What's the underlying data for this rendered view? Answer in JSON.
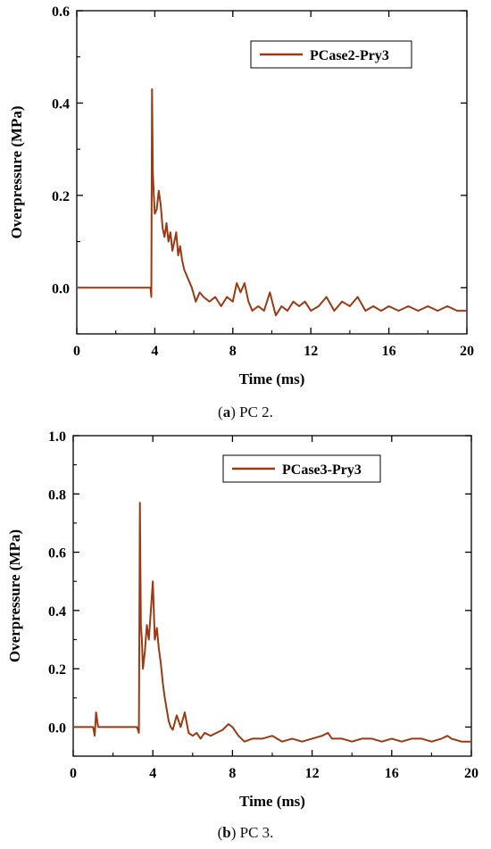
{
  "chart_data": [
    {
      "type": "line",
      "caption_label": "a",
      "caption_text": "PC 2.",
      "xlabel": "Time (ms)",
      "ylabel": "Overpressure (MPa)",
      "xlim": [
        0,
        20
      ],
      "ylim": [
        -0.1,
        0.6
      ],
      "xticks": [
        "0",
        "4",
        "8",
        "12",
        "16",
        "20"
      ],
      "yticks": [
        "0.0",
        "0.2",
        "0.4",
        "0.6"
      ],
      "legend_position": "top-right",
      "series": [
        {
          "name": "PCase2-Pry3",
          "color": "#9b3a12",
          "x": [
            0.0,
            1.0,
            2.0,
            3.0,
            3.7,
            3.78,
            3.82,
            3.86,
            3.9,
            3.95,
            4.0,
            4.1,
            4.2,
            4.3,
            4.4,
            4.5,
            4.6,
            4.7,
            4.8,
            4.9,
            5.0,
            5.1,
            5.2,
            5.3,
            5.4,
            5.5,
            5.7,
            5.9,
            6.1,
            6.3,
            6.5,
            6.8,
            7.1,
            7.4,
            7.7,
            8.0,
            8.2,
            8.4,
            8.6,
            8.8,
            9.0,
            9.3,
            9.6,
            9.9,
            10.2,
            10.5,
            10.8,
            11.1,
            11.4,
            11.7,
            12.0,
            12.4,
            12.8,
            13.2,
            13.6,
            14.0,
            14.4,
            14.8,
            15.2,
            15.6,
            16.0,
            16.5,
            17.0,
            17.5,
            18.0,
            18.5,
            19.0,
            19.5,
            20.0
          ],
          "y": [
            0.0,
            0.0,
            0.0,
            0.0,
            0.0,
            0.0,
            -0.02,
            0.43,
            0.25,
            0.2,
            0.16,
            0.17,
            0.21,
            0.18,
            0.13,
            0.11,
            0.14,
            0.1,
            0.12,
            0.08,
            0.1,
            0.12,
            0.07,
            0.09,
            0.06,
            0.04,
            0.02,
            0.0,
            -0.03,
            -0.01,
            -0.02,
            -0.03,
            -0.02,
            -0.04,
            -0.02,
            -0.03,
            0.01,
            -0.01,
            0.01,
            -0.03,
            -0.05,
            -0.04,
            -0.05,
            -0.01,
            -0.06,
            -0.04,
            -0.05,
            -0.03,
            -0.04,
            -0.03,
            -0.05,
            -0.04,
            -0.02,
            -0.05,
            -0.03,
            -0.04,
            -0.02,
            -0.05,
            -0.04,
            -0.05,
            -0.04,
            -0.05,
            -0.04,
            -0.05,
            -0.04,
            -0.05,
            -0.04,
            -0.05,
            -0.05
          ]
        }
      ]
    },
    {
      "type": "line",
      "caption_label": "b",
      "caption_text": "PC 3.",
      "xlabel": "Time (ms)",
      "ylabel": "Overpressure (MPa)",
      "xlim": [
        0,
        20
      ],
      "ylim": [
        -0.1,
        1.0
      ],
      "xticks": [
        "0",
        "4",
        "8",
        "12",
        "16",
        "20"
      ],
      "yticks": [
        "0.0",
        "0.2",
        "0.4",
        "0.6",
        "0.8",
        "1.0"
      ],
      "legend_position": "top-right",
      "series": [
        {
          "name": "PCase3-Pry3",
          "color": "#9b3a12",
          "x": [
            0.0,
            0.5,
            1.0,
            1.08,
            1.15,
            1.25,
            1.5,
            2.0,
            2.5,
            3.0,
            3.2,
            3.3,
            3.35,
            3.4,
            3.45,
            3.5,
            3.6,
            3.7,
            3.8,
            3.9,
            4.0,
            4.1,
            4.2,
            4.3,
            4.4,
            4.5,
            4.6,
            4.7,
            4.8,
            4.9,
            5.0,
            5.2,
            5.4,
            5.6,
            5.8,
            6.0,
            6.2,
            6.4,
            6.6,
            6.9,
            7.2,
            7.5,
            7.8,
            8.0,
            8.3,
            8.6,
            9.0,
            9.5,
            10.0,
            10.5,
            11.0,
            11.5,
            12.0,
            12.5,
            12.8,
            13.0,
            13.5,
            14.0,
            14.5,
            15.0,
            15.5,
            16.0,
            16.5,
            17.0,
            17.5,
            18.0,
            18.5,
            18.8,
            19.0,
            19.5,
            20.0
          ],
          "y": [
            0.0,
            0.0,
            0.0,
            -0.03,
            0.05,
            0.0,
            0.0,
            0.0,
            0.0,
            0.0,
            0.0,
            -0.02,
            0.77,
            0.35,
            0.3,
            0.2,
            0.26,
            0.35,
            0.3,
            0.4,
            0.5,
            0.3,
            0.34,
            0.27,
            0.22,
            0.15,
            0.1,
            0.06,
            0.02,
            0.0,
            -0.01,
            0.04,
            0.0,
            0.05,
            -0.02,
            -0.03,
            -0.02,
            -0.04,
            -0.02,
            -0.03,
            -0.02,
            -0.01,
            0.01,
            0.0,
            -0.03,
            -0.05,
            -0.04,
            -0.04,
            -0.03,
            -0.05,
            -0.04,
            -0.05,
            -0.04,
            -0.03,
            -0.02,
            -0.04,
            -0.04,
            -0.05,
            -0.04,
            -0.04,
            -0.05,
            -0.04,
            -0.05,
            -0.04,
            -0.04,
            -0.05,
            -0.04,
            -0.03,
            -0.04,
            -0.05,
            -0.05
          ]
        }
      ]
    }
  ]
}
